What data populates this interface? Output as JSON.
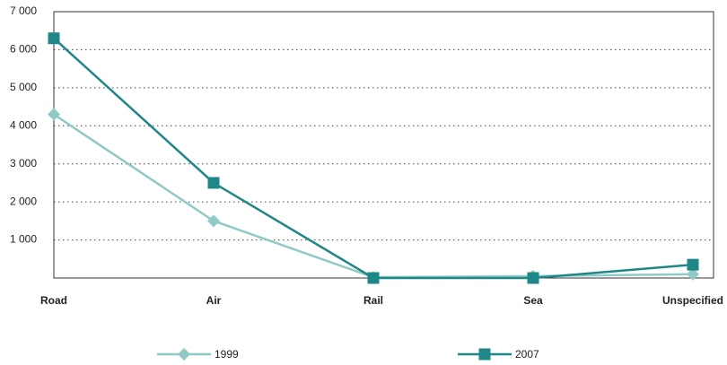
{
  "chart_data": {
    "type": "line",
    "categories": [
      "Road",
      "Air",
      "Rail",
      "Sea",
      "Unspecified"
    ],
    "series": [
      {
        "name": "1999",
        "color": "#8fcac6",
        "marker": "diamond",
        "values": [
          4300,
          1500,
          20,
          50,
          100
        ]
      },
      {
        "name": "2007",
        "color": "#1f8787",
        "marker": "square",
        "values": [
          6300,
          2500,
          0,
          0,
          350
        ]
      }
    ],
    "ylim": [
      0,
      7000
    ],
    "yticks": [
      {
        "value": 1000,
        "label": "1 000"
      },
      {
        "value": 2000,
        "label": "2 000"
      },
      {
        "value": 3000,
        "label": "3 000"
      },
      {
        "value": 4000,
        "label": "4 000"
      },
      {
        "value": 5000,
        "label": "5 000"
      },
      {
        "value": 6000,
        "label": "6 000"
      },
      {
        "value": 7000,
        "label": "7 000"
      }
    ],
    "grid": true
  }
}
